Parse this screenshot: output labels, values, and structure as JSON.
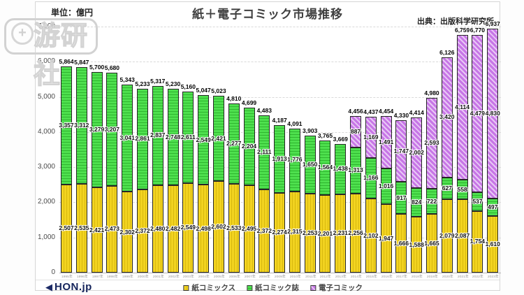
{
  "watermark": {
    "text": "游研社"
  },
  "header": {
    "unit_label": "単位：億円",
    "title": "紙＋電子コミック市場推移",
    "source": "出典：出版科学研究所"
  },
  "footer": {
    "logo_text": "HON.jp"
  },
  "chart_data": {
    "type": "bar",
    "stacked": true,
    "title": "紙＋電子コミック市場推移",
    "unit": "億円",
    "source": "出版科学研究所",
    "grid": "horizontal-dashed",
    "legend_position": "bottom",
    "ylim": [
      0,
      7000
    ],
    "ytick_step": 1000,
    "categories": [
      "1995年",
      "1996年",
      "1997年",
      "1998年",
      "1999年",
      "2000年",
      "2001年",
      "2002年",
      "2003年",
      "2004年",
      "2005年",
      "2006年",
      "2007年",
      "2008年",
      "2009年",
      "2010年",
      "2011年",
      "2012年",
      "2013年",
      "2014年",
      "2015年",
      "2016年",
      "2017年",
      "2018年",
      "2019年",
      "2020年",
      "2021年",
      "2022年",
      "2023年"
    ],
    "series": [
      {
        "name": "紙コミックス",
        "color": "#f2d320",
        "pattern": "vertical-stripes",
        "values": [
          2507,
          2535,
          2421,
          2473,
          2302,
          2372,
          2480,
          2482,
          2549,
          2498,
          2602,
          2533,
          2495,
          2372,
          2274,
          2315,
          2253,
          2201,
          2231,
          2256,
          2102,
          1947,
          1666,
          1588,
          1665,
          2079,
          2087,
          1754,
          1610
        ]
      },
      {
        "name": "紙コミック誌",
        "color": "#4ee04e",
        "pattern": "horizontal-stripes",
        "values": [
          3357,
          3312,
          3279,
          3207,
          3041,
          2861,
          2837,
          2748,
          2611,
          2549,
          2421,
          2277,
          2204,
          2111,
          1913,
          1776,
          1650,
          1564,
          1438,
          1313,
          1166,
          1016,
          917,
          824,
          722,
          627,
          558,
          537,
          497
        ]
      },
      {
        "name": "電子コミック",
        "color": "#c776e6",
        "pattern": "diagonal-stripes",
        "values": [
          0,
          0,
          0,
          0,
          0,
          0,
          0,
          0,
          0,
          0,
          0,
          0,
          0,
          0,
          0,
          0,
          0,
          0,
          0,
          887,
          1169,
          1491,
          1747,
          2002,
          2593,
          3420,
          4114,
          4479,
          4830
        ]
      }
    ],
    "totals": [
      5864,
      5847,
      5700,
      5680,
      5343,
      5233,
      5317,
      5230,
      5160,
      5047,
      5023,
      4810,
      4699,
      4483,
      4187,
      4091,
      3903,
      3765,
      3669,
      4456,
      4437,
      4454,
      4330,
      4414,
      4980,
      6126,
      6759,
      6770,
      6937
    ]
  }
}
